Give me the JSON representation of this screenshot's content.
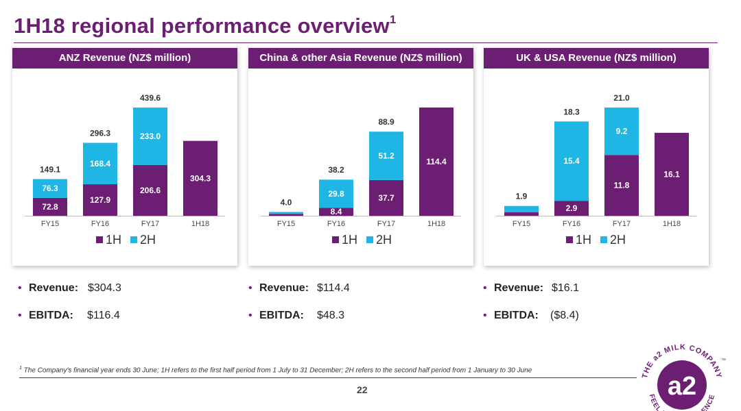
{
  "title": "1H18 regional performance overview",
  "title_sup": "1",
  "colors": {
    "purple": "#6b1e72",
    "cyan": "#1fb5e4"
  },
  "legend": {
    "h1": "1H",
    "h2": "2H"
  },
  "chart_data": [
    {
      "type": "bar",
      "stacked": true,
      "title": "ANZ Revenue (NZ$ million)",
      "categories": [
        "FY15",
        "FY16",
        "FY17",
        "1H18"
      ],
      "series": [
        {
          "name": "1H",
          "values": [
            72.8,
            127.9,
            206.6,
            304.3
          ]
        },
        {
          "name": "2H",
          "values": [
            76.3,
            168.4,
            233.0,
            null
          ]
        }
      ],
      "segment_labels": [
        {
          "h1": "72.8",
          "h2": "76.3"
        },
        {
          "h1": "127.9",
          "h2": "168.4"
        },
        {
          "h1": "206.6",
          "h2": "233.0"
        },
        {
          "h1": "304.3",
          "h2": null
        }
      ],
      "totals": [
        "149.1",
        "296.3",
        "439.6",
        null
      ],
      "ylim": [
        0,
        439.6
      ]
    },
    {
      "type": "bar",
      "stacked": true,
      "title": "China & other Asia Revenue (NZ$ million)",
      "categories": [
        "FY15",
        "FY16",
        "FY17",
        "1H18"
      ],
      "series": [
        {
          "name": "1H",
          "values": [
            2.0,
            8.4,
            37.7,
            114.4
          ]
        },
        {
          "name": "2H",
          "values": [
            2.0,
            29.8,
            51.2,
            null
          ]
        }
      ],
      "segment_labels": [
        {
          "h1": null,
          "h2": null
        },
        {
          "h1": "8.4",
          "h2": "29.8"
        },
        {
          "h1": "37.7",
          "h2": "51.2"
        },
        {
          "h1": "114.4",
          "h2": null
        }
      ],
      "totals": [
        "4.0",
        "38.2",
        "88.9",
        null
      ],
      "ylim": [
        0,
        114.4
      ]
    },
    {
      "type": "bar",
      "stacked": true,
      "title": "UK & USA Revenue (NZ$ million)",
      "categories": [
        "FY15",
        "FY16",
        "FY17",
        "1H18"
      ],
      "series": [
        {
          "name": "1H",
          "values": [
            0.7,
            2.9,
            11.8,
            16.1
          ]
        },
        {
          "name": "2H",
          "values": [
            1.2,
            15.4,
            9.2,
            null
          ]
        }
      ],
      "segment_labels": [
        {
          "h1": null,
          "h2": null
        },
        {
          "h1": "2.9",
          "h2": "15.4"
        },
        {
          "h1": "11.8",
          "h2": "9.2"
        },
        {
          "h1": "16.1",
          "h2": null
        }
      ],
      "totals": [
        "1.9",
        "18.3",
        "21.0",
        null
      ],
      "ylim": [
        0,
        21.0
      ]
    }
  ],
  "metrics": [
    {
      "revenue_label": "Revenue:",
      "revenue_value": "$304.3",
      "ebitda_label": "EBITDA:",
      "ebitda_value": "$116.4"
    },
    {
      "revenue_label": "Revenue:",
      "revenue_value": "$114.4",
      "ebitda_label": "EBITDA:",
      "ebitda_value": "$48.3"
    },
    {
      "revenue_label": "Revenue:",
      "revenue_value": "$16.1",
      "ebitda_label": "EBITDA:",
      "ebitda_value": "($8.4)"
    }
  ],
  "bullet_symbol": "•",
  "footnote": {
    "sup": "1",
    "text": " The Company's financial year ends 30 June; 1H refers to the first half period from 1 July to 31 December; 2H refers to the second half period from 1 January to 30 June"
  },
  "page_number": "22",
  "logo": {
    "mark": "a2",
    "top_text": "THE a2 MILK COMPANY",
    "bottom_text": "FEEL THE DIFFERENCE",
    "tm": "™"
  }
}
